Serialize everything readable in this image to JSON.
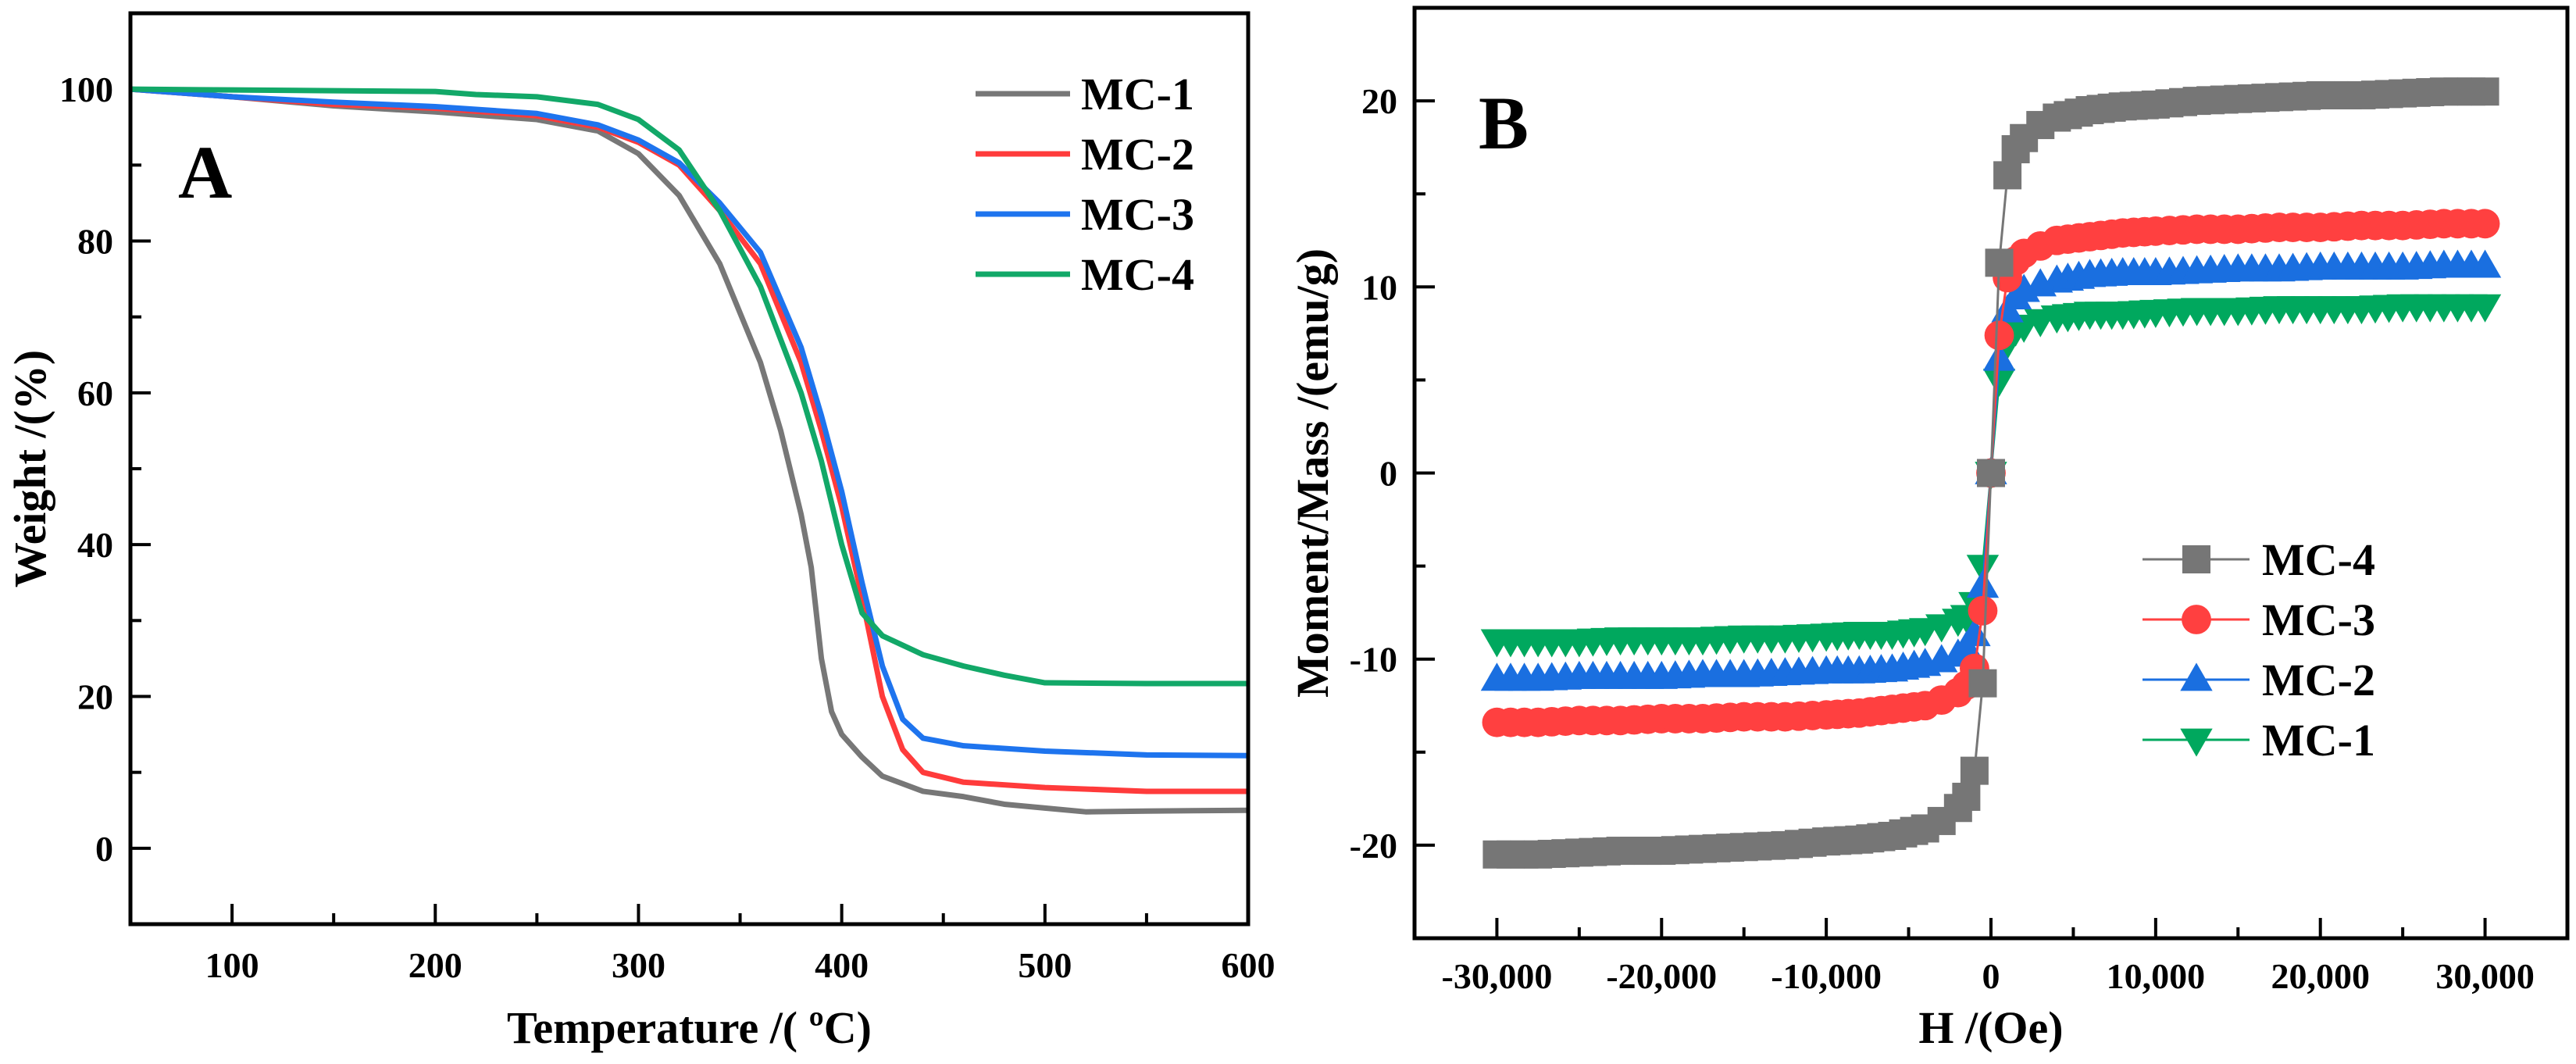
{
  "chart_data": [
    {
      "type": "line",
      "panel_label": "A",
      "title": "",
      "xlabel": "Temperature /( ºC)",
      "ylabel": "Weight /(%)",
      "xlim": [
        50,
        600
      ],
      "ylim": [
        -10,
        110
      ],
      "xticks": [
        100,
        200,
        300,
        400,
        500,
        600
      ],
      "yticks": [
        0,
        20,
        40,
        60,
        80,
        100
      ],
      "grid": false,
      "legend_position": "top-right",
      "series": [
        {
          "name": "MC-1",
          "color": "#777777",
          "x": [
            50,
            100,
            150,
            200,
            250,
            280,
            300,
            320,
            340,
            360,
            370,
            380,
            385,
            390,
            395,
            400,
            410,
            420,
            440,
            460,
            480,
            500,
            520,
            550,
            600
          ],
          "y": [
            100,
            99,
            97.8,
            97,
            96,
            94.5,
            91.5,
            86,
            77,
            64,
            55,
            44,
            37,
            25,
            18,
            15,
            12,
            9.5,
            7.5,
            6.8,
            5.8,
            5.3,
            4.8,
            4.9,
            5
          ]
        },
        {
          "name": "MC-2",
          "color": "#ff3b3b",
          "x": [
            50,
            100,
            150,
            200,
            250,
            280,
            300,
            320,
            340,
            360,
            380,
            390,
            400,
            410,
            420,
            430,
            440,
            460,
            500,
            550,
            600
          ],
          "y": [
            100,
            99,
            98,
            97.5,
            96.5,
            95,
            93,
            90,
            84,
            77,
            64,
            55,
            45,
            33,
            20,
            13,
            10,
            8.7,
            8,
            7.5,
            7.5
          ]
        },
        {
          "name": "MC-3",
          "color": "#1e74ee",
          "x": [
            50,
            100,
            150,
            200,
            250,
            280,
            300,
            320,
            340,
            360,
            380,
            390,
            400,
            410,
            420,
            430,
            440,
            460,
            500,
            550,
            600
          ],
          "y": [
            100,
            99,
            98.3,
            97.7,
            96.8,
            95.3,
            93.3,
            90.3,
            85,
            78.5,
            66,
            57,
            47,
            35,
            24,
            17,
            14.5,
            13.5,
            12.8,
            12.3,
            12.2
          ]
        },
        {
          "name": "MC-4",
          "color": "#12a868",
          "x": [
            50,
            100,
            150,
            200,
            220,
            250,
            280,
            300,
            320,
            340,
            360,
            380,
            390,
            400,
            410,
            420,
            440,
            460,
            480,
            500,
            550,
            600
          ],
          "y": [
            100,
            99.9,
            99.8,
            99.7,
            99.3,
            99,
            98,
            96,
            92,
            84,
            74,
            60,
            51,
            40,
            31,
            28,
            25.5,
            24,
            22.8,
            21.8,
            21.7,
            21.7
          ]
        }
      ]
    },
    {
      "type": "line",
      "panel_label": "B",
      "title": "",
      "xlabel": "H /(Oe)",
      "ylabel": "Moment/Mass /(emu/g)",
      "xlim": [
        -35000,
        35000
      ],
      "ylim": [
        -25,
        25
      ],
      "xticks": [
        -30000,
        -20000,
        -10000,
        0,
        10000,
        20000,
        30000
      ],
      "xtick_labels": [
        "-30,000",
        "-20,000",
        "-10,000",
        "0",
        "10,000",
        "20,000",
        "30,000"
      ],
      "yticks": [
        -20,
        -10,
        0,
        10,
        20
      ],
      "grid": false,
      "legend_position": "center-right",
      "x": [
        -30000,
        -27500,
        -25000,
        -22500,
        -20000,
        -17500,
        -15000,
        -12500,
        -10000,
        -8000,
        -6000,
        -4000,
        -3000,
        -2000,
        -1500,
        -1000,
        -500,
        0,
        500,
        1000,
        1500,
        2000,
        3000,
        4000,
        6000,
        8000,
        10000,
        12500,
        15000,
        17500,
        20000,
        22500,
        25000,
        27500,
        30000
      ],
      "series": [
        {
          "name": "MC-4",
          "color": "#767676",
          "marker": "square",
          "y": [
            -20.5,
            -20.5,
            -20.4,
            -20.3,
            -20.3,
            -20.2,
            -20.1,
            -20,
            -19.8,
            -19.7,
            -19.5,
            -19.1,
            -18.7,
            -18,
            -17.4,
            -16,
            -11.3,
            0,
            11.3,
            16,
            17.4,
            18,
            18.7,
            19.1,
            19.5,
            19.7,
            19.8,
            20,
            20.1,
            20.2,
            20.3,
            20.3,
            20.4,
            20.5,
            20.5
          ]
        },
        {
          "name": "MC-3",
          "color": "#ff4040",
          "marker": "circle",
          "y": [
            -13.4,
            -13.4,
            -13.3,
            -13.3,
            -13.2,
            -13.2,
            -13.1,
            -13.1,
            -13,
            -12.9,
            -12.7,
            -12.5,
            -12.2,
            -11.8,
            -11.4,
            -10.5,
            -7.4,
            0,
            7.4,
            10.5,
            11.4,
            11.8,
            12.2,
            12.5,
            12.7,
            12.9,
            13,
            13.1,
            13.1,
            13.2,
            13.2,
            13.3,
            13.3,
            13.4,
            13.4
          ]
        },
        {
          "name": "MC-2",
          "color": "#1a6fe0",
          "marker": "triangle-up",
          "y": [
            -11.1,
            -11.1,
            -11,
            -11,
            -11,
            -10.9,
            -10.9,
            -10.8,
            -10.7,
            -10.7,
            -10.6,
            -10.3,
            -10.1,
            -9.8,
            -9.4,
            -8.7,
            -6.1,
            0,
            6.1,
            8.7,
            9.4,
            9.8,
            10.1,
            10.3,
            10.6,
            10.7,
            10.7,
            10.8,
            10.9,
            10.9,
            11,
            11,
            11,
            11.1,
            11.1
          ]
        },
        {
          "name": "MC-1",
          "color": "#00a85e",
          "marker": "triangle-down",
          "y": [
            -9,
            -9,
            -9,
            -8.9,
            -8.9,
            -8.9,
            -8.8,
            -8.8,
            -8.7,
            -8.6,
            -8.6,
            -8.4,
            -8.2,
            -7.9,
            -7.7,
            -7,
            -5,
            0,
            5,
            7,
            7.7,
            7.9,
            8.2,
            8.4,
            8.6,
            8.6,
            8.7,
            8.8,
            8.8,
            8.9,
            8.9,
            8.9,
            9,
            9,
            9
          ]
        }
      ]
    }
  ]
}
